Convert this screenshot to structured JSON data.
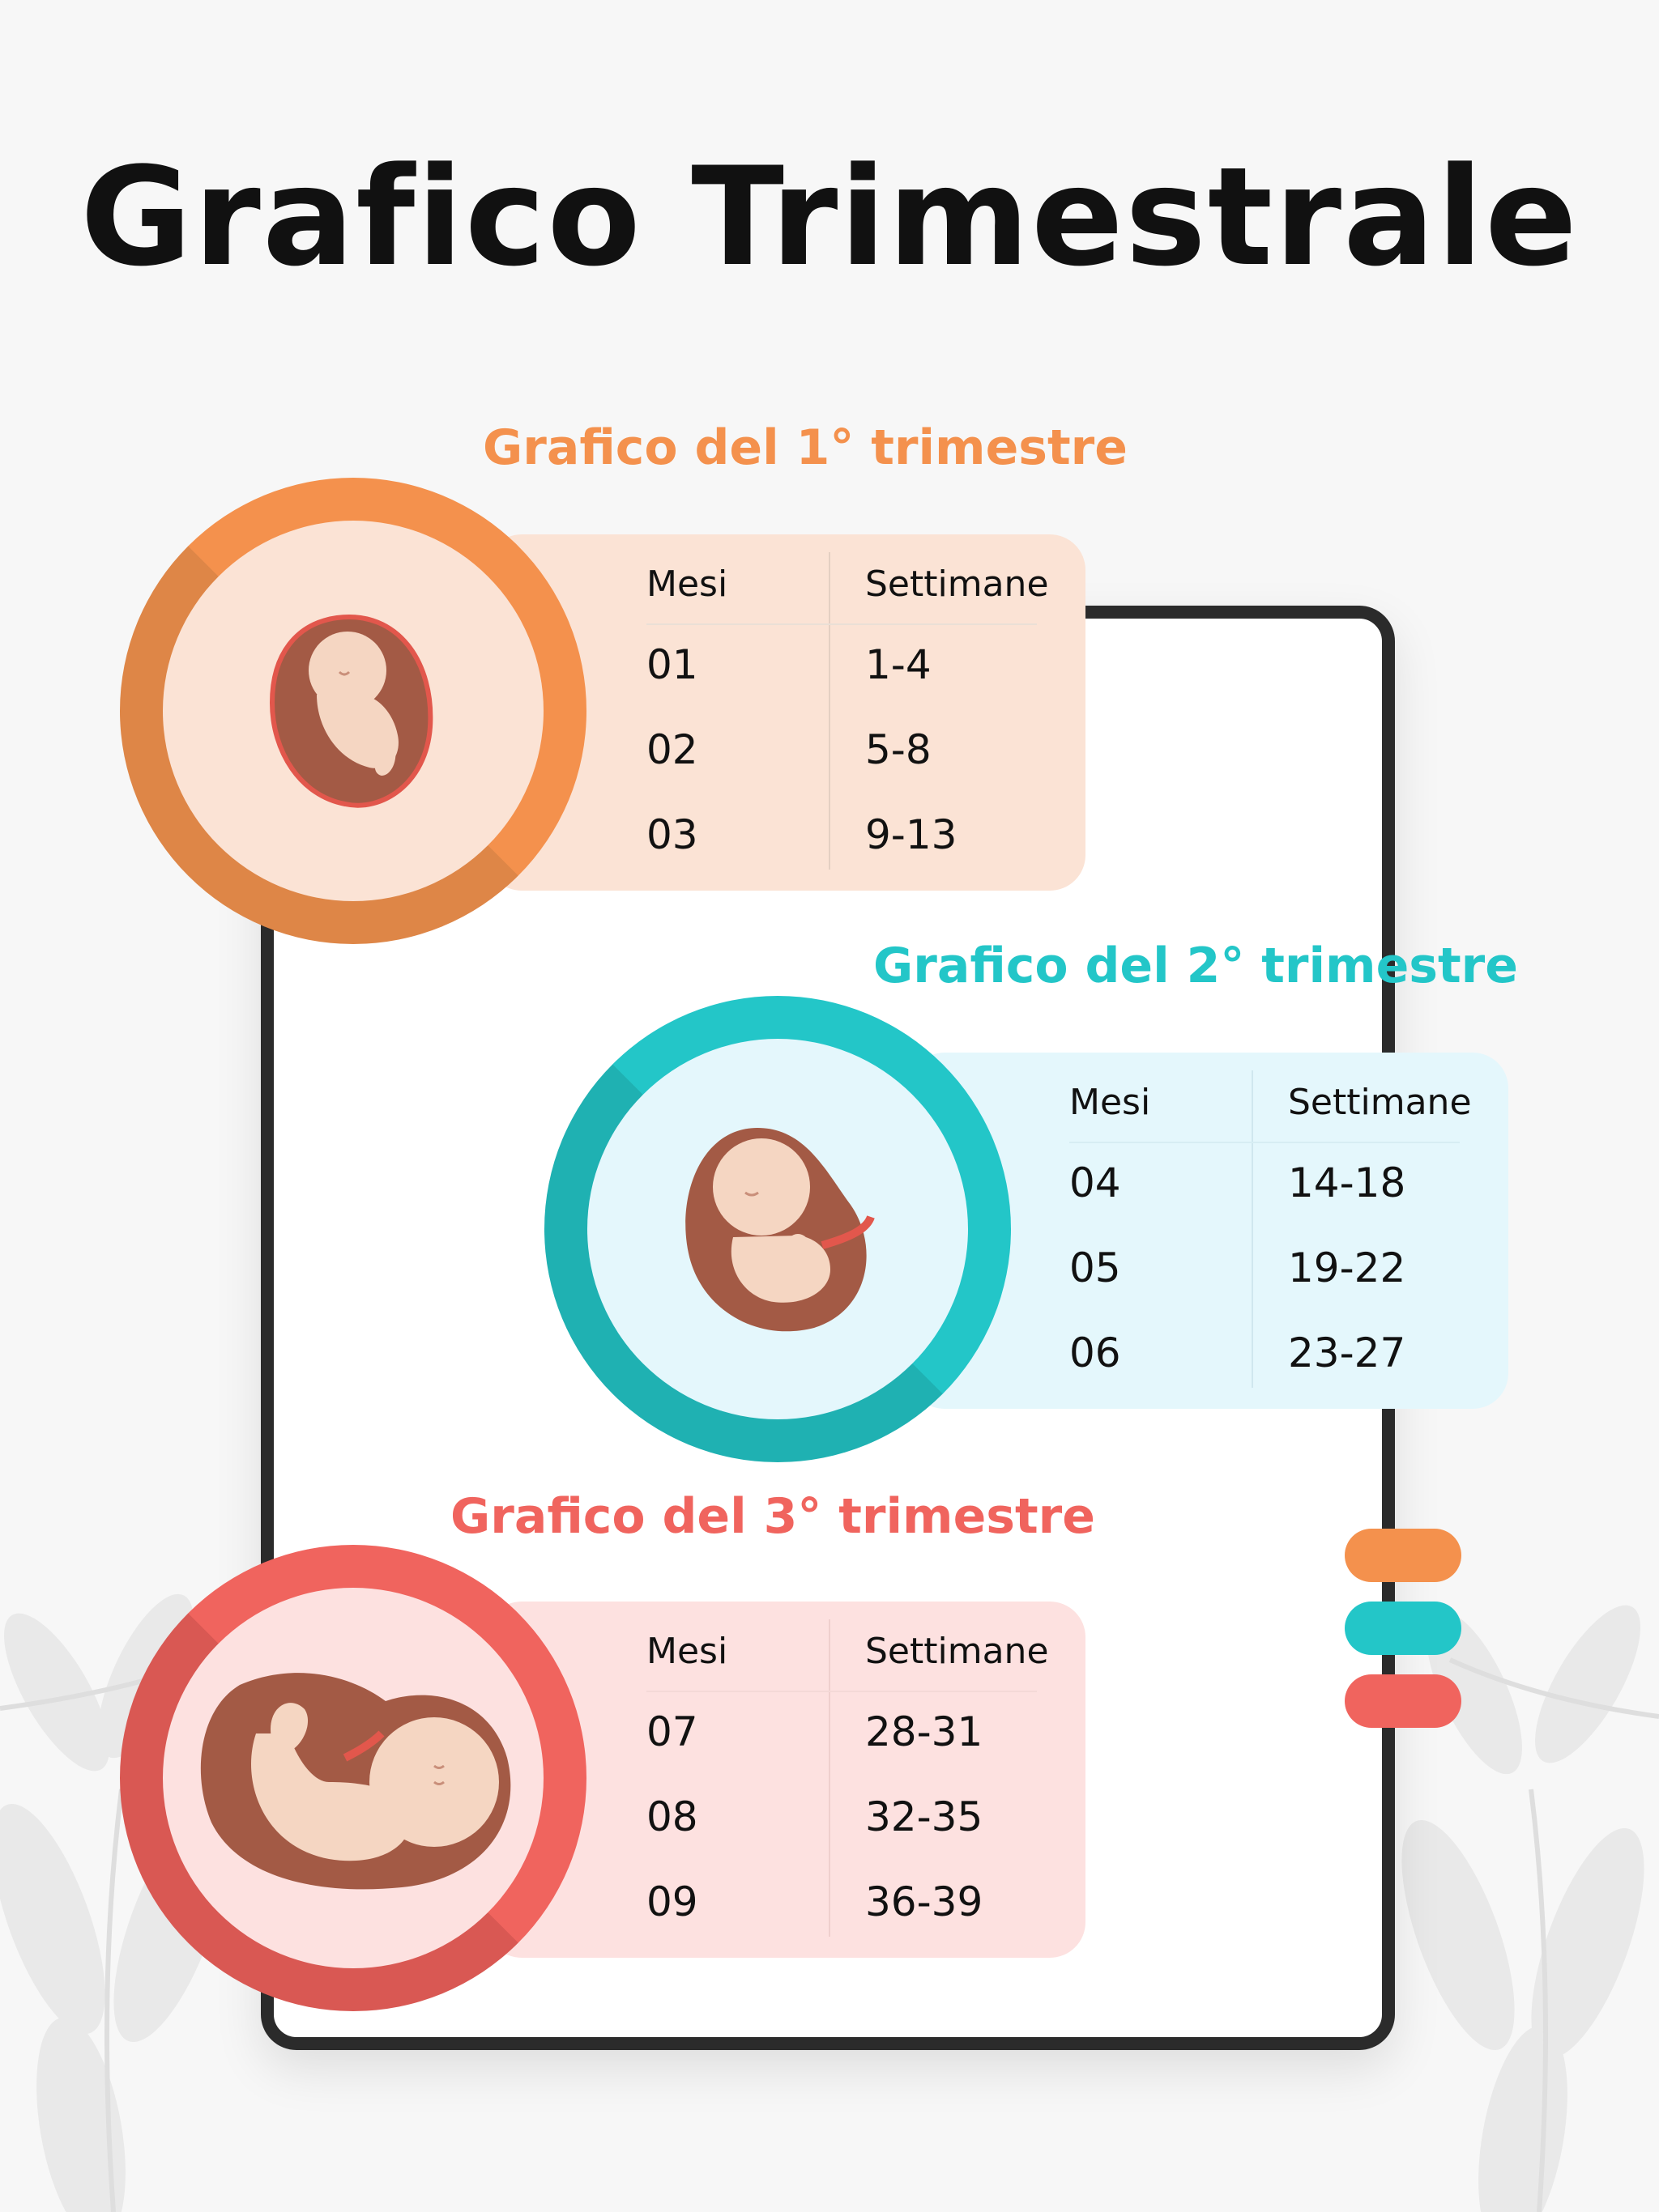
{
  "page": {
    "title": "Grafico Trimestrale"
  },
  "colors": {
    "background": "#f7f7f7",
    "first": "#f4914d",
    "second": "#23c6c8",
    "third": "#f0645e",
    "first_light": "#fbe3d5",
    "second_light": "#e4f7fc",
    "third_light": "#fde1e0"
  },
  "trimesters": [
    {
      "title": "Grafico del 1° trimestre",
      "icon": "embryo-icon",
      "table": {
        "headers": [
          "Mesi",
          "Settimane"
        ],
        "rows": [
          [
            "01",
            "1-4"
          ],
          [
            "02",
            "5-8"
          ],
          [
            "03",
            "9-13"
          ]
        ]
      }
    },
    {
      "title": "Grafico del 2° trimestre",
      "icon": "fetus-icon",
      "table": {
        "headers": [
          "Mesi",
          "Settimane"
        ],
        "rows": [
          [
            "04",
            "14-18"
          ],
          [
            "05",
            "19-22"
          ],
          [
            "06",
            "23-27"
          ]
        ]
      }
    },
    {
      "title": "Grafico del 3° trimestre",
      "icon": "baby-in-womb-icon",
      "table": {
        "headers": [
          "Mesi",
          "Settimane"
        ],
        "rows": [
          [
            "07",
            "28-31"
          ],
          [
            "08",
            "32-35"
          ],
          [
            "09",
            "36-39"
          ]
        ]
      }
    }
  ]
}
